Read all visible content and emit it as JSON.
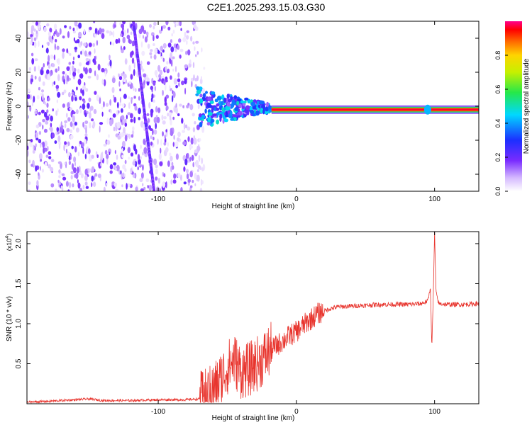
{
  "title": "C2E1.2025.293.15.03.G30",
  "chart_data": [
    {
      "type": "heatmap",
      "name": "spectrogram",
      "xlabel": "Height of straight line (km)",
      "ylabel": "Frequency (Hz)",
      "xlim": [
        -195,
        132
      ],
      "ylim": [
        -50,
        50
      ],
      "xticks": [
        {
          "value": -100,
          "label": "-100"
        },
        {
          "value": 0,
          "label": "0"
        },
        {
          "value": 100,
          "label": "100"
        }
      ],
      "yticks": [
        {
          "value": -40,
          "label": "-40"
        },
        {
          "value": -20,
          "label": "-20"
        },
        {
          "value": 0,
          "label": "0"
        },
        {
          "value": 20,
          "label": "20"
        },
        {
          "value": 40,
          "label": "40"
        }
      ],
      "colorbar": {
        "label": "Normalized spectral amplitude",
        "range": [
          0,
          1
        ],
        "ticks": [
          {
            "value": 0.0,
            "label": "0.0"
          },
          {
            "value": 0.2,
            "label": "0.2"
          },
          {
            "value": 0.4,
            "label": "0.4"
          },
          {
            "value": 0.6,
            "label": "0.6"
          },
          {
            "value": 0.8,
            "label": "0.8"
          }
        ]
      },
      "features": {
        "noise_region_x": [
          -195,
          -70
        ],
        "streak": {
          "x_start": -118,
          "y_start": 50,
          "x_end": -103,
          "y_end": -50,
          "amplitude": 0.15
        },
        "carrier_line": {
          "x_start": -18,
          "x_end": 132,
          "frequency": -2,
          "amplitude": 1.0
        },
        "scintillation_region_x": [
          -72,
          -18
        ]
      }
    },
    {
      "type": "line",
      "name": "snr",
      "xlabel": "Height of straight line (km)",
      "ylabel": "SNR (10 * v/v)",
      "exponent_label": "(x10",
      "exponent_power": "4",
      "exponent_close": ")",
      "xlim": [
        -195,
        132
      ],
      "ylim": [
        0,
        2.15
      ],
      "xticks": [
        {
          "value": -100,
          "label": "-100"
        },
        {
          "value": 0,
          "label": "0"
        },
        {
          "value": 100,
          "label": "100"
        }
      ],
      "yticks": [
        {
          "value": 0.5,
          "label": "0.5"
        },
        {
          "value": 1.0,
          "label": "1.0"
        },
        {
          "value": 1.5,
          "label": "1.5"
        },
        {
          "value": 2.0,
          "label": "2.0"
        }
      ],
      "color": "#e8352e",
      "series": [
        {
          "name": "SNR",
          "x": [
            -195,
            -180,
            -160,
            -150,
            -140,
            -120,
            -100,
            -80,
            -70,
            -65,
            -60,
            -55,
            -50,
            -45,
            -40,
            -35,
            -30,
            -25,
            -20,
            -15,
            -10,
            -5,
            0,
            5,
            10,
            15,
            20,
            25,
            30,
            40,
            50,
            60,
            70,
            80,
            90,
            95,
            97,
            98,
            99,
            100,
            101,
            103,
            110,
            120,
            132
          ],
          "y": [
            0.02,
            0.03,
            0.05,
            0.06,
            0.04,
            0.04,
            0.05,
            0.05,
            0.06,
            0.1,
            0.18,
            0.3,
            0.45,
            0.55,
            0.4,
            0.42,
            0.48,
            0.55,
            0.65,
            0.72,
            0.78,
            0.85,
            0.9,
            0.98,
            1.05,
            1.12,
            1.16,
            1.19,
            1.21,
            1.22,
            1.23,
            1.24,
            1.24,
            1.24,
            1.25,
            1.28,
            1.45,
            0.7,
            1.3,
            2.15,
            1.4,
            1.25,
            1.24,
            1.24,
            1.25
          ]
        }
      ]
    }
  ]
}
